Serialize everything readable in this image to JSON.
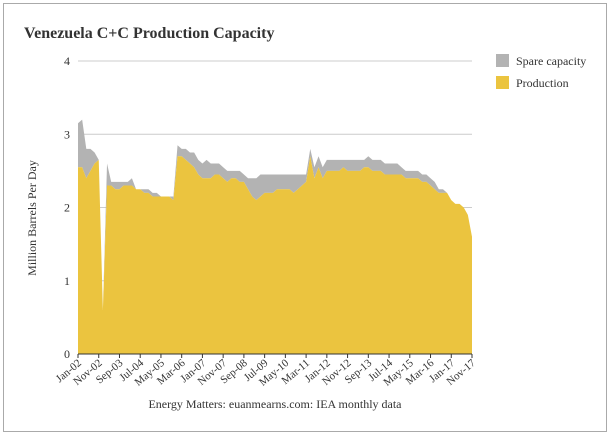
{
  "chart_data": {
    "type": "stacked_area",
    "title": "Venezuela C+C Production Capacity",
    "y_label": "Million Barrels Per Day",
    "source": "Energy Matters: euanmearns.com: IEA monthly data",
    "categories": [
      "Jan-02",
      null,
      null,
      null,
      null,
      "Nov-02",
      null,
      null,
      null,
      null,
      "Sep-03",
      null,
      null,
      null,
      null,
      "Jul-04",
      null,
      null,
      null,
      null,
      "May-05",
      null,
      null,
      null,
      null,
      "Mar-06",
      null,
      null,
      null,
      null,
      "Jan-07",
      null,
      null,
      null,
      null,
      "Nov-07",
      null,
      null,
      null,
      null,
      "Sep-08",
      null,
      null,
      null,
      null,
      "Jul-09",
      null,
      null,
      null,
      null,
      "May-10",
      null,
      null,
      null,
      null,
      "Mar-11",
      null,
      null,
      null,
      null,
      "Jan-12",
      null,
      null,
      null,
      null,
      "Nov-12",
      null,
      null,
      null,
      null,
      "Sep-13",
      null,
      null,
      null,
      null,
      "Jul-14",
      null,
      null,
      null,
      null,
      "May-15",
      null,
      null,
      null,
      null,
      "Mar-16",
      null,
      null,
      null,
      null,
      "Jan-17",
      null,
      null,
      null,
      null,
      "Nov-17"
    ],
    "series": [
      {
        "name": "Spare capacity",
        "color": "#b3b3b3",
        "values": [
          0.6,
          0.65,
          0.4,
          0.3,
          0.15,
          0.0,
          0.0,
          0.3,
          0.05,
          0.1,
          0.1,
          0.05,
          0.05,
          0.1,
          0.0,
          0.0,
          0.05,
          0.05,
          0.05,
          0.05,
          0.0,
          0.0,
          0.0,
          0.05,
          0.15,
          0.1,
          0.15,
          0.15,
          0.2,
          0.2,
          0.2,
          0.25,
          0.2,
          0.15,
          0.15,
          0.15,
          0.15,
          0.1,
          0.1,
          0.15,
          0.1,
          0.15,
          0.25,
          0.3,
          0.3,
          0.25,
          0.25,
          0.25,
          0.2,
          0.2,
          0.2,
          0.2,
          0.25,
          0.2,
          0.15,
          0.1,
          0.1,
          0.15,
          0.15,
          0.15,
          0.15,
          0.15,
          0.15,
          0.15,
          0.1,
          0.15,
          0.15,
          0.15,
          0.15,
          0.1,
          0.15,
          0.15,
          0.15,
          0.15,
          0.15,
          0.15,
          0.15,
          0.15,
          0.1,
          0.1,
          0.1,
          0.1,
          0.1,
          0.1,
          0.1,
          0.1,
          0.1,
          0.05,
          0.05,
          0.0,
          0.0,
          0.0,
          0.0,
          0.0,
          0.0,
          0.0
        ]
      },
      {
        "name": "Production",
        "color": "#ebc43f",
        "values": [
          2.55,
          2.55,
          2.4,
          2.5,
          2.6,
          2.65,
          0.6,
          2.3,
          2.3,
          2.25,
          2.25,
          2.3,
          2.3,
          2.3,
          2.25,
          2.25,
          2.2,
          2.2,
          2.15,
          2.15,
          2.15,
          2.15,
          2.15,
          2.1,
          2.7,
          2.7,
          2.65,
          2.6,
          2.55,
          2.45,
          2.4,
          2.4,
          2.4,
          2.45,
          2.45,
          2.4,
          2.35,
          2.4,
          2.4,
          2.35,
          2.35,
          2.25,
          2.15,
          2.1,
          2.15,
          2.2,
          2.2,
          2.2,
          2.25,
          2.25,
          2.25,
          2.25,
          2.2,
          2.25,
          2.3,
          2.35,
          2.7,
          2.4,
          2.55,
          2.4,
          2.5,
          2.5,
          2.5,
          2.5,
          2.55,
          2.5,
          2.5,
          2.5,
          2.5,
          2.55,
          2.55,
          2.5,
          2.5,
          2.5,
          2.45,
          2.45,
          2.45,
          2.45,
          2.45,
          2.4,
          2.4,
          2.4,
          2.4,
          2.35,
          2.35,
          2.3,
          2.25,
          2.2,
          2.2,
          2.2,
          2.1,
          2.05,
          2.05,
          2.0,
          1.9,
          1.6
        ]
      }
    ],
    "ylim": [
      0,
      4
    ],
    "yticks": [
      0,
      1,
      2,
      3,
      4
    ],
    "grid": true
  }
}
